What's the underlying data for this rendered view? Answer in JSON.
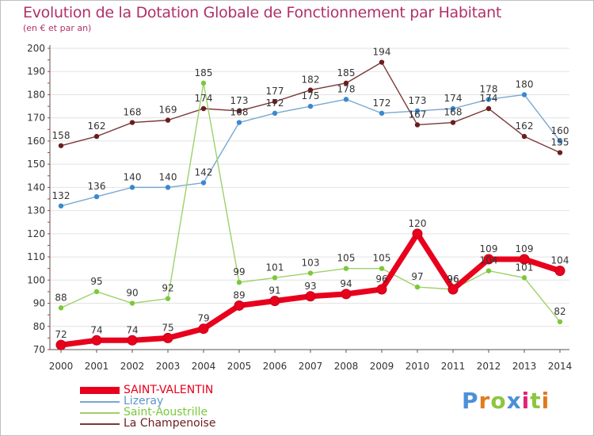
{
  "header": {
    "title": "Evolution de la Dotation Globale de Fonctionnement par Habitant",
    "subtitle": "(en € et par an)"
  },
  "colors": {
    "title": "#b0306a",
    "grid": "#e2e2e2",
    "axis": "#555555",
    "label": "#333333"
  },
  "logo": {
    "letters": [
      "P",
      "r",
      "o",
      "x",
      "i",
      "t",
      "i"
    ],
    "colors": [
      "#4a90d9",
      "#e07b1f",
      "#8dc63f",
      "#4a90d9",
      "#e2237a",
      "#8dc63f",
      "#e07b1f"
    ]
  },
  "chart_data": {
    "type": "line",
    "title": "Evolution de la Dotation Globale de Fonctionnement par Habitant",
    "subtitle": "(en € et par an)",
    "x": [
      "2000",
      "2001",
      "2002",
      "2003",
      "2004",
      "2005",
      "2006",
      "2007",
      "2008",
      "2009",
      "2010",
      "2011",
      "2012",
      "2013",
      "2014"
    ],
    "ylim": [
      70,
      200
    ],
    "yticks": [
      70,
      80,
      90,
      100,
      110,
      120,
      130,
      140,
      150,
      160,
      170,
      180,
      190,
      200
    ],
    "grid": "horizontal",
    "legend_position": "bottom-left",
    "series": [
      {
        "name": "SAINT-VALENTIN",
        "color": "#e8001c",
        "marker": "#e8001c",
        "weight": "thick",
        "values": [
          72,
          74,
          74,
          75,
          79,
          89,
          91,
          93,
          94,
          96,
          120,
          96,
          109,
          109,
          104
        ]
      },
      {
        "name": "Lizeray",
        "color": "#79a8d2",
        "marker": "#3b88d0",
        "weight": "thin",
        "values": [
          132,
          136,
          140,
          140,
          142,
          168,
          172,
          175,
          178,
          172,
          173,
          174,
          178,
          180,
          160
        ]
      },
      {
        "name": "Saint-Aoustrille",
        "color": "#9fd06a",
        "marker": "#7cc83b",
        "weight": "thin",
        "values": [
          88,
          95,
          90,
          92,
          185,
          99,
          101,
          103,
          105,
          105,
          97,
          96,
          104,
          101,
          82
        ]
      },
      {
        "name": "La Champenoise",
        "color": "#7a3838",
        "marker": "#6b1d1d",
        "weight": "thin",
        "values": [
          158,
          162,
          168,
          169,
          174,
          173,
          177,
          182,
          185,
          194,
          167,
          168,
          174,
          162,
          155
        ]
      }
    ]
  }
}
